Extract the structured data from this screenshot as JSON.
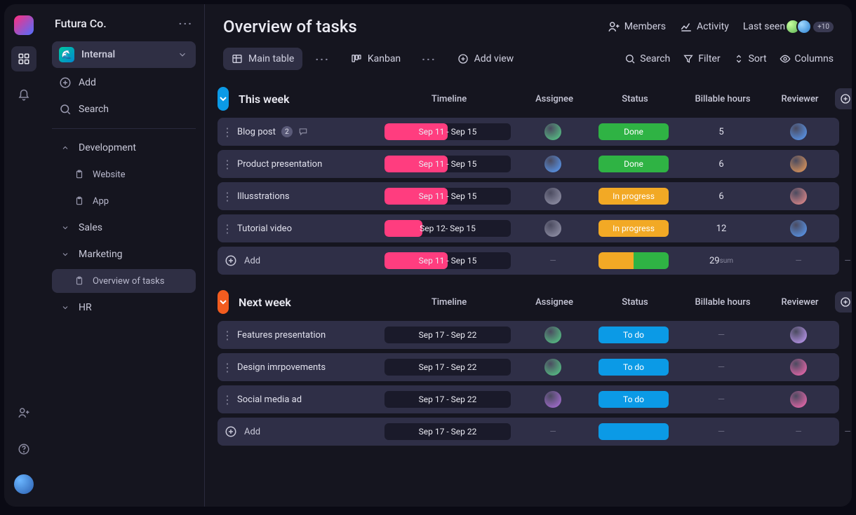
{
  "workspace": {
    "name": "Futura Co."
  },
  "sidebar": {
    "board": "Internal",
    "add": "Add",
    "search": "Search",
    "sections": [
      {
        "label": "Development",
        "items": [
          "Website",
          "App"
        ]
      },
      {
        "label": "Sales",
        "items": []
      },
      {
        "label": "Marketing",
        "items": [
          "Overview of tasks"
        ]
      },
      {
        "label": "HR",
        "items": []
      }
    ]
  },
  "header": {
    "title": "Overview of tasks",
    "members": "Members",
    "activity": "Activity",
    "lastseen": "Last seen",
    "avatar_colors": [
      "#7ed957",
      "#4fa8ff"
    ],
    "extra_count": "+10"
  },
  "tabs": {
    "main": "Main table",
    "kanban": "Kanban",
    "addview": "Add view"
  },
  "tools": {
    "search": "Search",
    "filter": "Filter",
    "sort": "Sort",
    "columns": "Columns"
  },
  "columns": [
    "Timeline",
    "Assignee",
    "Status",
    "Billable  hours",
    "Reviewer"
  ],
  "columns2": [
    "Timeline",
    "Assignee",
    "Status",
    "Billable hours",
    "Reviewer"
  ],
  "colors": {
    "accent_this": "#0b9ae6",
    "accent_next": "#f25c1f",
    "done": "#2fb344",
    "inprog": "#f2a925",
    "todo": "#0b9ae6",
    "timeline_pink": "#ff3d7f",
    "row_bg": "#2f2f47"
  },
  "groups": [
    {
      "key": "this",
      "title": "This week",
      "accent": "#0b9ae6",
      "tasks": [
        {
          "name": "Blog post",
          "timeline": "Sep 11 - Sep 15",
          "fill": 50,
          "assignee": "#58d28a",
          "status": "Done",
          "status_color": "#2fb344",
          "hours": "5",
          "reviewer": "#5aa0ff",
          "comments": "2"
        },
        {
          "name": "Product presentation",
          "timeline": "Sep 11 - Sep 15",
          "fill": 50,
          "assignee": "#5aa0ff",
          "status": "Done",
          "status_color": "#2fb344",
          "hours": "6",
          "reviewer": "#f2a05a"
        },
        {
          "name": "Illusstrations",
          "timeline": "Sep 11 - Sep 15",
          "fill": 50,
          "assignee": "#9a9ab0",
          "status": "In progress",
          "status_color": "#f2a925",
          "hours": "6",
          "reviewer": "#f29090"
        },
        {
          "name": "Tutorial video",
          "timeline": "Sep 12- Sep 15",
          "fill": 30,
          "assignee": "#9a9ab0",
          "status": "In progress",
          "status_color": "#f2a925",
          "hours": "12",
          "reviewer": "#5aa0ff"
        }
      ],
      "summary": {
        "timeline": "Sep 11 - Sep 15",
        "fill": 50,
        "status_split": [
          "#f2a925",
          "#2fb344"
        ],
        "hours": "29",
        "hours_sub": "sum"
      }
    },
    {
      "key": "next",
      "title": "Next week",
      "accent": "#f25c1f",
      "tasks": [
        {
          "name": "Features presentation",
          "timeline": "Sep 17 - Sep 22",
          "fill": 0,
          "assignee": "#58d28a",
          "status": "To do",
          "status_color": "#0b9ae6",
          "hours": "",
          "reviewer": "#c8a0ff"
        },
        {
          "name": "Design imrpovements",
          "timeline": "Sep 17 - Sep 22",
          "fill": 0,
          "assignee": "#58d28a",
          "status": "To do",
          "status_color": "#0b9ae6",
          "hours": "",
          "reviewer": "#ff6bb5"
        },
        {
          "name": "Social media ad",
          "timeline": "Sep 17 - Sep 22",
          "fill": 0,
          "assignee": "#b070e0",
          "status": "To do",
          "status_color": "#0b9ae6",
          "hours": "",
          "reviewer": "#ff6bb5"
        }
      ],
      "summary": {
        "timeline": "Sep 17 - Sep 22",
        "fill": 0,
        "status_split": [
          "#0b9ae6"
        ],
        "hours": "",
        "hours_sub": ""
      }
    }
  ],
  "strings": {
    "add": "Add"
  }
}
